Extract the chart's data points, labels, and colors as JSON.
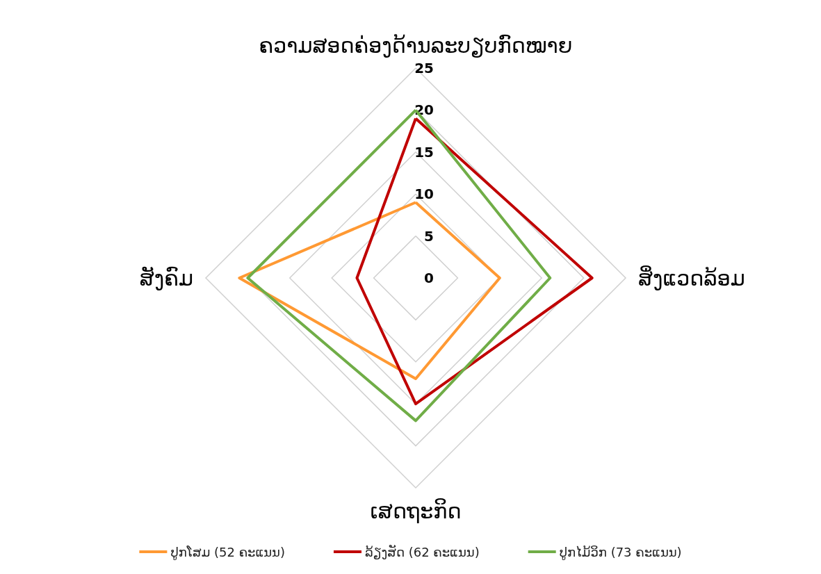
{
  "chart_data": {
    "type": "radar",
    "categories": [
      "ຄວາມສອດຄ່ອງດ້ານລະບຽບກົດໝາຍ",
      "ສິ່ງແວດລ້ອມ",
      "ເສດຖະກິດ",
      "ສັງຄົມ"
    ],
    "ylim": [
      0,
      25
    ],
    "yticks": [
      0,
      5,
      10,
      15,
      20,
      25
    ],
    "legend": "bottom",
    "grid": true,
    "marker": "none",
    "series": [
      {
        "name": "ປູກໂສມ (52 ຄະແນນ)",
        "color": "#ff9933",
        "values": [
          9,
          10,
          12,
          21
        ]
      },
      {
        "name": "ລ້ຽງສັດ (62 ຄະແນນ)",
        "color": "#c00000",
        "values": [
          19,
          21,
          15,
          7
        ]
      },
      {
        "name": "ປູກໄມ້ວິກ (73 ຄະແນນ)",
        "color": "#70ad47",
        "values": [
          20,
          16,
          17,
          20
        ]
      }
    ]
  }
}
